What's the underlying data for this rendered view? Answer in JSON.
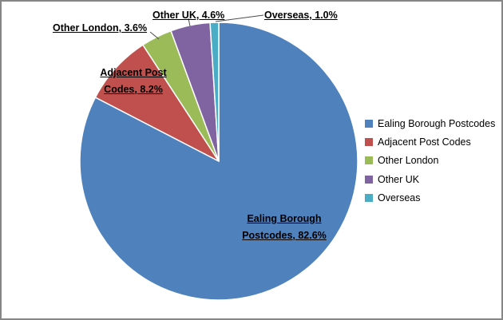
{
  "chart_data": {
    "type": "pie",
    "title": "",
    "categories": [
      "Ealing Borough Postcodes",
      "Adjacent Post Codes",
      "Other London",
      "Other UK",
      "Overseas"
    ],
    "values": [
      82.6,
      8.2,
      3.6,
      4.6,
      1.0
    ],
    "unit": "%",
    "colors": [
      "#4F81BD",
      "#C0504D",
      "#9BBB59",
      "#8064A2",
      "#4BACC6"
    ],
    "slice_border_color": "#FFFFFF",
    "leader_line_color": "#4D4D4D",
    "start_angle_deg": 0,
    "direction": "clockwise",
    "legend_position": "right",
    "data_labels": [
      {
        "text": "Ealing Borough Postcodes, 82.6%",
        "placement": "inside"
      },
      {
        "text": "Adjacent Post Codes, 8.2%",
        "placement": "inside"
      },
      {
        "text": "Other London, 3.6%",
        "placement": "outside"
      },
      {
        "text": "Other UK, 4.6%",
        "placement": "outside"
      },
      {
        "text": "Overseas, 1.0%",
        "placement": "outside"
      }
    ]
  },
  "legend": {
    "items": [
      {
        "label": "Ealing Borough Postcodes"
      },
      {
        "label": "Adjacent Post Codes"
      },
      {
        "label": "Other London"
      },
      {
        "label": "Other UK"
      },
      {
        "label": "Overseas"
      }
    ]
  }
}
